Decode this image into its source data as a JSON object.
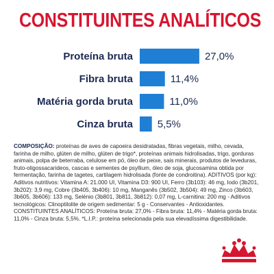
{
  "title": "CONSTITUINTES ANALÍTICOS",
  "colors": {
    "title_red": "#d7152f",
    "bar_blue": "#1f7fd4",
    "label_navy": "#1c2952",
    "logo_red": "#d7152f"
  },
  "chart_data": {
    "type": "bar",
    "orientation": "horizontal",
    "categories": [
      "Proteína bruta",
      "Fibra bruta",
      "Matéria gorda bruta",
      "Cinza bruta"
    ],
    "values": [
      27.0,
      11.4,
      11.0,
      5.5
    ],
    "value_labels": [
      "27,0%",
      "11,4%",
      "11,0%",
      "5,5%"
    ],
    "unit": "%",
    "grid": false,
    "legend": "none"
  },
  "composition": {
    "heading": "COMPOSIÇÃO:",
    "body": " proteínas de aves de capoeira desidratadas, fibras vegetais, milho, cevada, farinha de milho, glúten de milho, glúten de trigo*, proteínas animais hidrolisadas, trigo, gorduras animais, polpa de beterraba, celulose em pó, óleo de peixe, sais minerais, produtos de leveduras, fruto-oligossacarideos, cascas e sementes de psyllium, óleo de soja, glucosamina obtida por fermentação, farinha de tagetes, cartilagem hidrolisada (fonte de condroitina). ADITIVOS (por kg): Aditivos nutritivos: Vitamina A: 21.000 UI, Vitamina D3: 900 UI, Ferro (3b103): 46 mg, Iodo (3b201, 3b202): 3,9 mg, Cobre (3b405, 3b406): 10 mg, Manganês (3b502, 3b504): 49 mg, Zinco (3b603, 3b605, 3b606): 133 mg, Selénio (3b801, 3b811, 3b812): 0,07 mg, L-carnitina: 200 mg - Aditivos tecnológicos: Clinoptilolite de origem sedimentar: 5 g - Conservantes - Antioxidantes. CONSTITUINTES ANALÍTICOS: Proteína bruta: 27,0% - Fibra bruta: 11,4% - Matéria gorda bruta: 11,0% - Cinza bruta: 5,5%. *L.I.P.: proteína selecionada pela sua elevadíssima digestibilidade."
  }
}
